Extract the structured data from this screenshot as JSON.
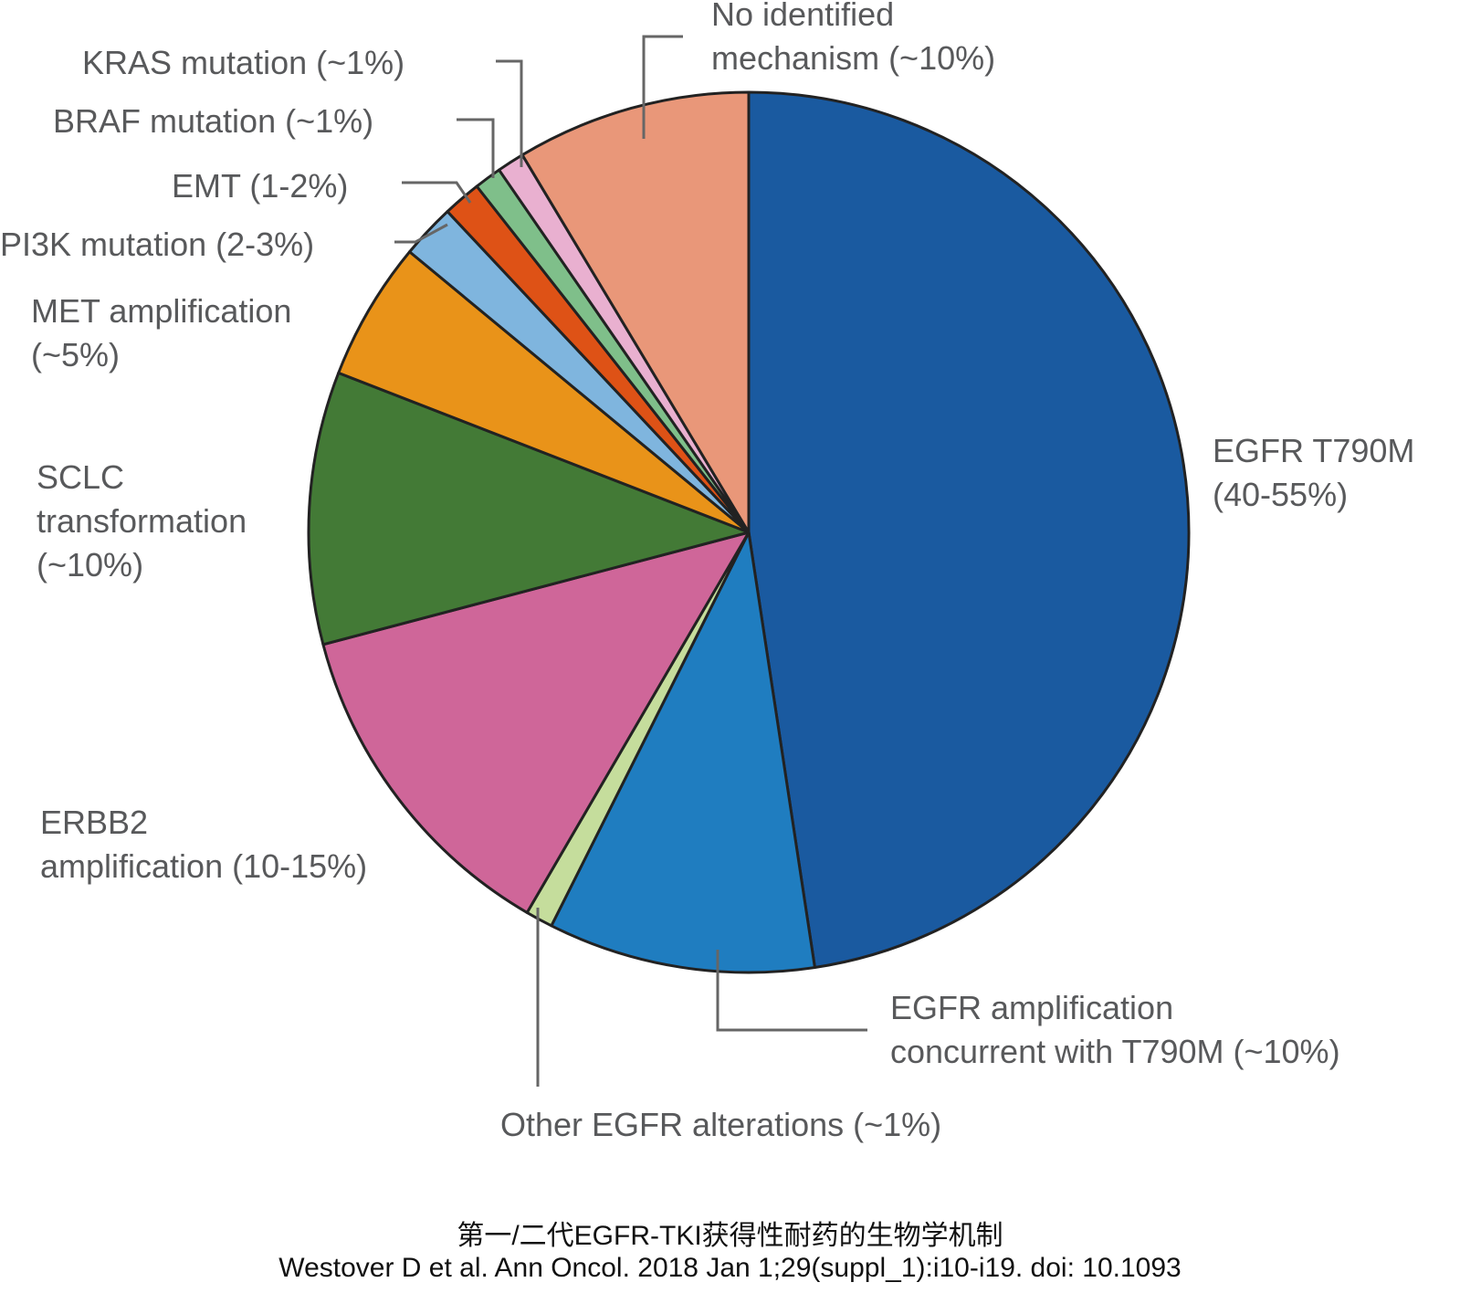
{
  "chart_data": {
    "type": "pie",
    "categories": [
      "EGFR T790M\n(40-55%)",
      "EGFR amplification\nconcurrent with T790M (~10%)",
      "Other EGFR alterations (~1%)",
      "ERBB2\namplification (10-15%)",
      "SCLC\ntransformation\n(~10%)",
      "MET amplification\n(~5%)",
      "PI3K mutation (2-3%)",
      "EMT (1-2%)",
      "BRAF mutation (~1%)",
      "KRAS mutation (~1%)",
      "No identified\nmechanism (~10%)"
    ],
    "values": [
      47.6,
      9.8,
      1.0,
      12.5,
      10.0,
      5.1,
      2.0,
      1.4,
      1.0,
      1.0,
      8.6
    ],
    "colors": [
      "#1a5aa0",
      "#1f7dc0",
      "#c5dd9c",
      "#cf6699",
      "#437a36",
      "#e99319",
      "#7fb5de",
      "#de5216",
      "#7fbf8a",
      "#e9b0d0",
      "#e99779"
    ],
    "caption": [
      "第一/二代EGFR-TKI获得性耐药的生物学机制",
      "Westover D et al. Ann Oncol. 2018 Jan 1;29(suppl_1):i10-i19. doi: 10.1093"
    ]
  }
}
